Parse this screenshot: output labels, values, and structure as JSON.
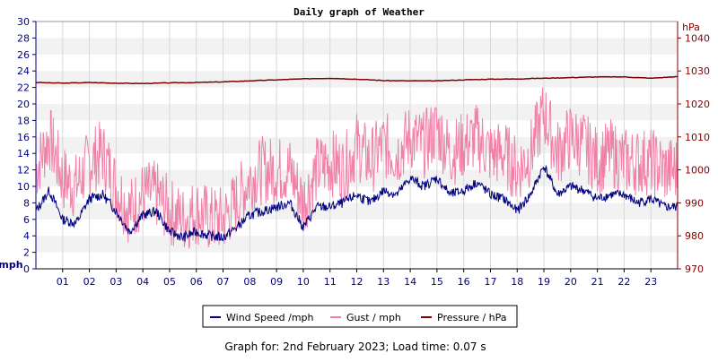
{
  "chart_data": {
    "type": "line",
    "title": "Daily graph of Weather",
    "caption": "Graph for: 2nd February 2023; Load time: 0.07 s",
    "x": {
      "unit": "hour",
      "range": [
        0,
        24
      ],
      "tick_labels": [
        "01",
        "02",
        "03",
        "04",
        "05",
        "06",
        "07",
        "08",
        "09",
        "10",
        "11",
        "12",
        "13",
        "14",
        "15",
        "16",
        "17",
        "18",
        "19",
        "20",
        "21",
        "22",
        "23"
      ]
    },
    "y_left": {
      "label": "mph",
      "range": [
        0,
        30
      ],
      "tick_labels": [
        "0",
        "2",
        "4",
        "6",
        "8",
        "10",
        "12",
        "14",
        "16",
        "18",
        "20",
        "22",
        "24",
        "26",
        "28",
        "30"
      ]
    },
    "y_right": {
      "label": "hPa",
      "range": [
        970,
        1045
      ],
      "tick_labels": [
        "970",
        "980",
        "990",
        "1000",
        "1010",
        "1020",
        "1030",
        "1040"
      ]
    },
    "grid": "horizontal alternating bands, vertical hour lines",
    "legend": {
      "placement": "bottom-center",
      "items": [
        {
          "label": "Wind Speed /mph",
          "color": "#000080"
        },
        {
          "label": "Gust / mph",
          "color": "#f080a8"
        },
        {
          "label": "Pressure / hPa",
          "color": "#800000"
        }
      ]
    },
    "series": [
      {
        "name": "Wind Speed /mph",
        "axis": "left",
        "color": "#000080",
        "x": [
          0,
          0.5,
          1,
          1.5,
          2,
          2.5,
          3,
          3.5,
          4,
          4.5,
          5,
          5.5,
          6,
          6.5,
          7,
          7.5,
          8,
          8.5,
          9,
          9.5,
          10,
          10.5,
          11,
          11.5,
          12,
          12.5,
          13,
          13.5,
          14,
          14.5,
          15,
          15.5,
          16,
          16.5,
          17,
          17.5,
          18,
          18.5,
          19,
          19.5,
          20,
          20.5,
          21,
          21.5,
          22,
          22.5,
          23,
          23.5,
          24
        ],
        "values": [
          7,
          9.5,
          6,
          5.5,
          8.5,
          9,
          7,
          4.5,
          6.5,
          7,
          4.5,
          3.8,
          4.5,
          4,
          3.8,
          5,
          6.5,
          7,
          7.5,
          8,
          5,
          7.5,
          7.5,
          8,
          9,
          8,
          9.5,
          9,
          11,
          10,
          11,
          9,
          9.5,
          10.5,
          9,
          8.5,
          7,
          9,
          12.5,
          9,
          10,
          9.5,
          8.5,
          9,
          9,
          8,
          8.5,
          7.5,
          7.5
        ]
      },
      {
        "name": "Gust / mph",
        "axis": "left",
        "color": "#f080a8",
        "x": [
          0,
          0.5,
          1,
          1.5,
          2,
          2.5,
          3,
          3.5,
          4,
          4.5,
          5,
          5.5,
          6,
          6.5,
          7,
          7.5,
          8,
          8.5,
          9,
          9.5,
          10,
          10.5,
          11,
          11.5,
          12,
          12.5,
          13,
          13.5,
          14,
          14.5,
          15,
          15.5,
          16,
          16.5,
          17,
          17.5,
          18,
          18.5,
          19,
          19.5,
          20,
          20.5,
          21,
          21.5,
          22,
          22.5,
          23,
          23.5,
          24
        ],
        "values": [
          12,
          16,
          11,
          10,
          13,
          14,
          10,
          7,
          9,
          9,
          7,
          6,
          7,
          6,
          6,
          8,
          11,
          12,
          12,
          12,
          8,
          12,
          13,
          12,
          15,
          13,
          15,
          14,
          16,
          15,
          17,
          14,
          15,
          16,
          14,
          14,
          12,
          14,
          19,
          14,
          16,
          15,
          13,
          14,
          13,
          13,
          13,
          12,
          12
        ]
      },
      {
        "name": "Pressure / hPa",
        "axis": "right",
        "color": "#800000",
        "x": [
          0,
          1,
          2,
          3,
          4,
          5,
          6,
          7,
          8,
          9,
          10,
          11,
          12,
          13,
          14,
          15,
          16,
          17,
          18,
          19,
          20,
          21,
          22,
          23,
          24
        ],
        "values": [
          1026.5,
          1026.3,
          1026.5,
          1026.3,
          1026.2,
          1026.4,
          1026.5,
          1026.7,
          1027,
          1027.3,
          1027.6,
          1027.8,
          1027.5,
          1027.1,
          1027,
          1027,
          1027.3,
          1027.5,
          1027.6,
          1027.8,
          1028,
          1028.2,
          1028.2,
          1027.8,
          1028.3
        ]
      }
    ]
  }
}
